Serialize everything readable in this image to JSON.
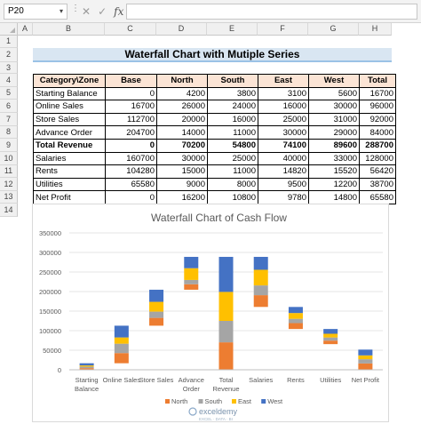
{
  "formula_bar": {
    "name_box": "P20",
    "fx_label": "fx",
    "formula": ""
  },
  "columns": [
    "A",
    "B",
    "C",
    "D",
    "E",
    "F",
    "G",
    "H"
  ],
  "rows": [
    "1",
    "2",
    "3",
    "4",
    "5",
    "6",
    "7",
    "8",
    "9",
    "10",
    "11",
    "12",
    "13",
    "14"
  ],
  "sheet_title": "Waterfall Chart with Mutiple Series",
  "table": {
    "headers": [
      "Category\\Zone",
      "Base",
      "North",
      "South",
      "East",
      "West",
      "Total"
    ],
    "rows": [
      {
        "cells": [
          "Starting Balance",
          "0",
          "4200",
          "3800",
          "3100",
          "5600",
          "16700"
        ],
        "bold": false
      },
      {
        "cells": [
          "Online Sales",
          "16700",
          "26000",
          "24000",
          "16000",
          "30000",
          "96000"
        ],
        "bold": false
      },
      {
        "cells": [
          "Store Sales",
          "112700",
          "20000",
          "16000",
          "25000",
          "31000",
          "92000"
        ],
        "bold": false
      },
      {
        "cells": [
          "Advance Order",
          "204700",
          "14000",
          "11000",
          "30000",
          "29000",
          "84000"
        ],
        "bold": false
      },
      {
        "cells": [
          "Total Revenue",
          "0",
          "70200",
          "54800",
          "74100",
          "89600",
          "288700"
        ],
        "bold": true
      },
      {
        "cells": [
          "Salaries",
          "160700",
          "30000",
          "25000",
          "40000",
          "33000",
          "128000"
        ],
        "bold": false
      },
      {
        "cells": [
          "Rents",
          "104280",
          "15000",
          "11000",
          "14820",
          "15520",
          "56420"
        ],
        "bold": false
      },
      {
        "cells": [
          "Utilities",
          "65580",
          "9000",
          "8000",
          "9500",
          "12200",
          "38700"
        ],
        "bold": false
      },
      {
        "cells": [
          "Net Profit",
          "0",
          "16200",
          "10800",
          "9780",
          "14800",
          "65580"
        ],
        "bold": false
      }
    ]
  },
  "chart_data": {
    "type": "bar",
    "stacked": true,
    "title": "Waterfall Chart of Cash Flow",
    "categories": [
      [
        "Starting",
        "Balance"
      ],
      [
        "Online Sales"
      ],
      [
        "Store Sales"
      ],
      [
        "Advance",
        "Order"
      ],
      [
        "Total",
        "Revenue"
      ],
      [
        "Salaries"
      ],
      [
        "Rents"
      ],
      [
        "Utilities"
      ],
      [
        "Net Profit"
      ]
    ],
    "base": [
      0,
      16700,
      112700,
      204700,
      0,
      160700,
      104280,
      65580,
      0
    ],
    "series": [
      {
        "name": "North",
        "color": "#ed7d31",
        "values": [
          4200,
          26000,
          20000,
          14000,
          70200,
          30000,
          15000,
          9000,
          16200
        ]
      },
      {
        "name": "South",
        "color": "#a5a5a5",
        "values": [
          3800,
          24000,
          16000,
          11000,
          54800,
          25000,
          11000,
          8000,
          10800
        ]
      },
      {
        "name": "East",
        "color": "#ffc000",
        "values": [
          3100,
          16000,
          25000,
          30000,
          74100,
          40000,
          14820,
          9500,
          9780
        ]
      },
      {
        "name": "West",
        "color": "#4472c4",
        "values": [
          5600,
          30000,
          31000,
          29000,
          89600,
          33000,
          15520,
          12200,
          14800
        ]
      }
    ],
    "ylim": [
      0,
      350000
    ],
    "yticks": [
      "0",
      "50000",
      "100000",
      "150000",
      "200000",
      "250000",
      "300000",
      "350000"
    ],
    "grid": true,
    "legend": "bottom"
  },
  "watermark": {
    "brand": "exceldemy",
    "tagline": "EXCEL · DATA · BI"
  }
}
